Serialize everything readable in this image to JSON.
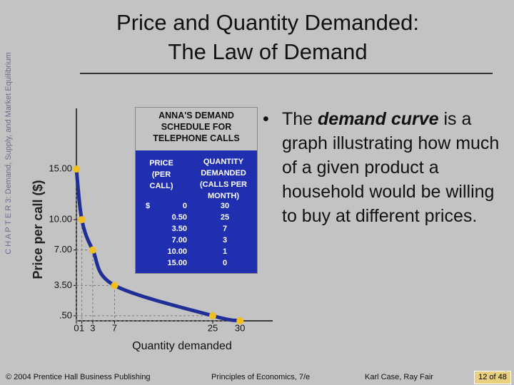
{
  "side_label": "C H A P T E R 3: Demand, Supply, and Market Equilibrium",
  "title": [
    "Price and Quantity Demanded:",
    "The Law of Demand"
  ],
  "chart_data": {
    "type": "line",
    "x_label": "Quantity demanded",
    "y_label": "Price per call ($)",
    "x": [
      0,
      1,
      3,
      7,
      25,
      30
    ],
    "series": [
      {
        "name": "Demand curve",
        "color": "#1f2f96",
        "values": [
          15,
          10,
          7,
          3.5,
          0.5,
          0
        ]
      }
    ],
    "marker_color": "#f0c020",
    "xlim": [
      0,
      36
    ],
    "ylim": [
      0,
      21
    ],
    "xticks": [
      0,
      1,
      3,
      7,
      25,
      30
    ],
    "yticks": [
      {
        "value": 0.5,
        "label": ".50"
      },
      {
        "value": 3.5,
        "label": "3.50"
      },
      {
        "value": 7,
        "label": "7.00"
      },
      {
        "value": 10,
        "label": "10.00"
      },
      {
        "value": 15,
        "label": "15.00"
      }
    ]
  },
  "table": {
    "title": "ANNA'S DEMAND SCHEDULE FOR TELEPHONE CALLS",
    "headers": [
      "PRICE (PER CALL)",
      "QUANTITY DEMANDED (CALLS PER MONTH)"
    ],
    "currency": "$",
    "rows": [
      [
        "0",
        "30"
      ],
      [
        "0.50",
        "25"
      ],
      [
        "3.50",
        "7"
      ],
      [
        "7.00",
        "3"
      ],
      [
        "10.00",
        "1"
      ],
      [
        "15.00",
        "0"
      ]
    ]
  },
  "bullet": [
    "The ",
    "demand curve",
    " is a graph illustrating how much of a given product a household would be willing to buy at different prices."
  ],
  "footer": [
    "© 2004 Prentice Hall Business Publishing",
    "Principles of Economics, 7/e",
    "Karl Case, Ray Fair",
    "12 of 48"
  ]
}
